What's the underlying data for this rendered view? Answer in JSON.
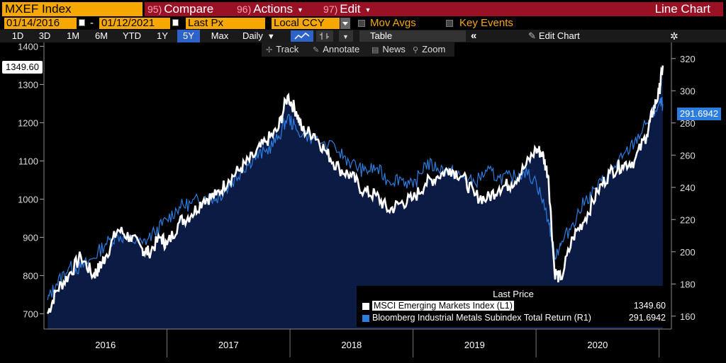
{
  "header": {
    "ticker": "MXEF Index",
    "compare": {
      "num": "95)",
      "label": "Compare"
    },
    "actions": {
      "num": "96)",
      "label": "Actions"
    },
    "edit": {
      "num": "97)",
      "label": "Edit"
    },
    "chart_type": "Line Chart"
  },
  "controls": {
    "start_date": "01/14/2016",
    "end_date": "01/12/2021",
    "dash": "-",
    "field": "Last Px",
    "currency": "Local CCY",
    "mov_avgs": "Mov Avgs",
    "key_events": "Key Events"
  },
  "ranges": [
    "1D",
    "3D",
    "1M",
    "6M",
    "YTD",
    "1Y",
    "5Y",
    "Max"
  ],
  "active_range": "5Y",
  "periodicity": "Daily",
  "table_label": "Table",
  "edit_chart_label": "Edit Chart",
  "tools": {
    "track": "Track",
    "annotate": "Annotate",
    "news": "News",
    "zoom": "Zoom"
  },
  "colors": {
    "accent": "#f7a800",
    "header_red": "#9a1126",
    "series_white": "#ffffff",
    "series_blue": "#2d7de0",
    "area_fill": "#0b1b44"
  },
  "last_prices": {
    "left": "1349.60",
    "right": "291.6942"
  },
  "legend": {
    "title": "Last Price",
    "rows": [
      {
        "label": "MSCI Emerging Markets Index  (L1)",
        "value": "1349.60",
        "color": "#ffffff"
      },
      {
        "label": "Bloomberg Industrial Metals Subindex Total Return  (R1)",
        "value": "291.6942",
        "color": "#2d7de0"
      }
    ]
  },
  "chart_data": {
    "type": "line",
    "x_labels": [
      "2016",
      "2017",
      "2018",
      "2019",
      "2020"
    ],
    "left_axis": {
      "ticks": [
        700,
        800,
        900,
        1000,
        1100,
        1200,
        1300,
        1400
      ],
      "ylim": [
        660,
        1410
      ]
    },
    "right_axis": {
      "ticks": [
        160,
        180,
        200,
        220,
        240,
        260,
        280,
        300,
        320
      ],
      "ylim": [
        152,
        330
      ]
    },
    "series": [
      {
        "name": "MSCI Emerging Markets Index  (L1)",
        "axis": "left",
        "x": [
          2016.03,
          2016.1,
          2016.2,
          2016.3,
          2016.4,
          2016.45,
          2016.5,
          2016.6,
          2016.7,
          2016.8,
          2016.85,
          2016.95,
          2017.0,
          2017.1,
          2017.2,
          2017.3,
          2017.4,
          2017.5,
          2017.6,
          2017.7,
          2017.8,
          2017.9,
          2017.98,
          2018.05,
          2018.1,
          2018.2,
          2018.3,
          2018.4,
          2018.5,
          2018.6,
          2018.7,
          2018.8,
          2018.9,
          2019.0,
          2019.1,
          2019.2,
          2019.3,
          2019.4,
          2019.5,
          2019.6,
          2019.7,
          2019.8,
          2019.9,
          2020.0,
          2020.05,
          2020.1,
          2020.15,
          2020.2,
          2020.3,
          2020.4,
          2020.5,
          2020.6,
          2020.7,
          2020.8,
          2020.9,
          2020.95,
          2021.0,
          2021.03
        ],
        "values": [
          700,
          760,
          800,
          850,
          800,
          820,
          850,
          920,
          900,
          870,
          860,
          900,
          880,
          940,
          960,
          1000,
          1010,
          1050,
          1080,
          1110,
          1150,
          1180,
          1270,
          1230,
          1180,
          1170,
          1120,
          1080,
          1060,
          1020,
          1010,
          970,
          990,
          1000,
          1040,
          1060,
          1080,
          1060,
          1010,
          1000,
          1030,
          1040,
          1080,
          1130,
          1120,
          1060,
          810,
          790,
          900,
          950,
          1020,
          1070,
          1090,
          1100,
          1170,
          1230,
          1280,
          1349.6
        ]
      },
      {
        "name": "Bloomberg Industrial Metals Subindex Total Return  (R1)",
        "axis": "right",
        "x": [
          2016.03,
          2016.1,
          2016.2,
          2016.3,
          2016.4,
          2016.5,
          2016.6,
          2016.7,
          2016.8,
          2016.9,
          2017.0,
          2017.1,
          2017.2,
          2017.3,
          2017.4,
          2017.5,
          2017.6,
          2017.7,
          2017.8,
          2017.9,
          2017.98,
          2018.05,
          2018.2,
          2018.4,
          2018.5,
          2018.6,
          2018.7,
          2018.8,
          2018.9,
          2019.0,
          2019.1,
          2019.2,
          2019.3,
          2019.4,
          2019.5,
          2019.6,
          2019.7,
          2019.8,
          2019.9,
          2020.0,
          2020.1,
          2020.15,
          2020.2,
          2020.3,
          2020.4,
          2020.5,
          2020.6,
          2020.7,
          2020.8,
          2020.9,
          2021.0,
          2021.03
        ],
        "values": [
          170,
          180,
          190,
          190,
          196,
          205,
          210,
          208,
          205,
          212,
          220,
          228,
          230,
          234,
          233,
          240,
          250,
          258,
          262,
          270,
          284,
          276,
          270,
          262,
          255,
          250,
          252,
          244,
          246,
          240,
          255,
          252,
          250,
          246,
          243,
          250,
          246,
          246,
          250,
          244,
          220,
          198,
          204,
          218,
          232,
          240,
          250,
          258,
          268,
          280,
          292,
          291.69
        ]
      }
    ],
    "area_fill_series": 0,
    "grid": false,
    "legend_position": "bottom-right"
  }
}
